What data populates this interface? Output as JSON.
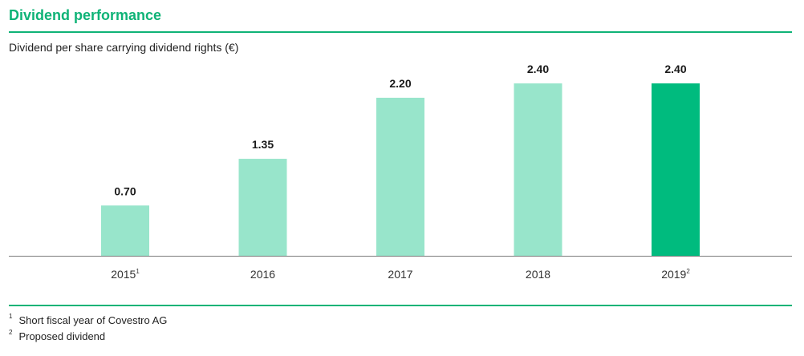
{
  "header": {
    "title": "Dividend performance",
    "subtitle": "Dividend per share carrying dividend rights (€)"
  },
  "chart_data": {
    "type": "bar",
    "title": "Dividend performance",
    "ylabel": "Dividend per share carrying dividend rights (€)",
    "categories": [
      "2015",
      "2016",
      "2017",
      "2018",
      "2019"
    ],
    "category_footnotes": [
      "1",
      "",
      "",
      "",
      "2"
    ],
    "values": [
      0.7,
      1.35,
      2.2,
      2.4,
      2.4
    ],
    "value_labels": [
      "0.70",
      "1.35",
      "2.20",
      "2.40",
      "2.40"
    ],
    "ylim": [
      0,
      2.4
    ],
    "grid": false,
    "colors": {
      "bar": "#98e5cb",
      "highlight": "#00bb7e",
      "highlight_index": 4
    }
  },
  "footnotes": [
    {
      "mark": "1",
      "text": "Short fiscal year of Covestro AG"
    },
    {
      "mark": "2",
      "text": "Proposed dividend"
    }
  ],
  "colors": {
    "accent": "#0fb377"
  }
}
